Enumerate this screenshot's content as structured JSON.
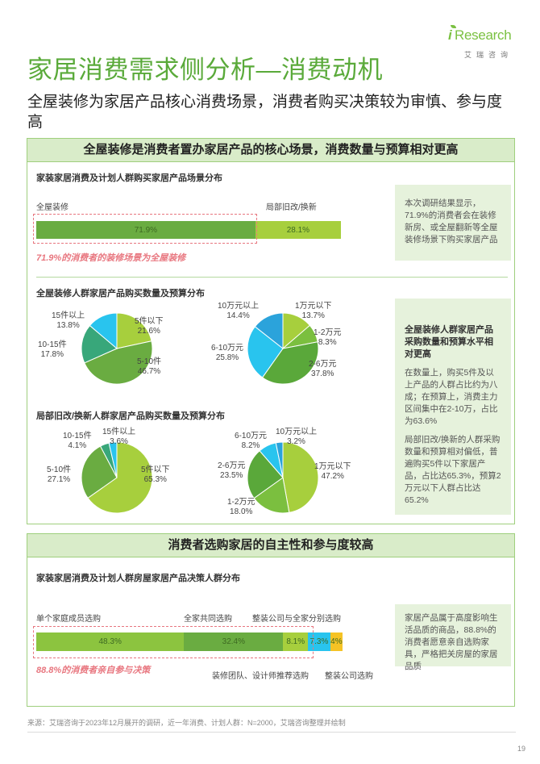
{
  "header": {
    "logo_i": "i",
    "logo_main": "Research",
    "logo_sub": "艾瑞咨询",
    "title": "家居消费需求侧分析—消费动机",
    "subtitle": "全屋装修为家居产品核心消费场景，消费者购买决策较为审慎、参与度高"
  },
  "section1": {
    "heading": "全屋装修是消费者置办家居产品的核心场景，消费数量与预算相对更高",
    "chart1_title": "家装家居消费及计划人群购买家居产品场景分布",
    "chart1_left_label": "全屋装修",
    "chart1_right_label": "局部旧改/换新",
    "chart1_note": "71.9%的消费者的装修场景为全屋装修",
    "side1": "本次调研结果显示，71.9%的消费者会在装修新房、或全屋翻新等全屋装修场景下购买家居产品",
    "chart2_title": "全屋装修人群家居产品购买数量及预算分布",
    "chart3_title": "局部旧改/换新人群家居产品购买数量及预算分布",
    "side2_title": "全屋装修人群家居产品采购数量和预算水平相对更高",
    "side2_p1": "在数量上，购买5件及以上产品的人群占比约为八成；在预算上，消费主力区间集中在2-10万，占比为63.6%",
    "side2_p2": "局部旧改/换新的人群采购数量和预算相对偏低，普遍购买5件以下家居产品，占比达65.3%，预算2万元以下人群占比达65.2%"
  },
  "section2": {
    "heading": "消费者选购家居的自主性和参与度较高",
    "chart_title": "家装家居消费及计划人群房屋家居产品决策人群分布",
    "note": "88.8%的消费者亲自参与决策",
    "side": "家居产品属于高度影响生活品质的商品，88.8%的消费者愿意亲自选购家具，严格把关房屋的家居品质",
    "cat_labels_top": [
      "单个家庭成员选购",
      "全家共同选购",
      "整装公司与全家分别选购"
    ],
    "cat_labels_bottom": [
      "装修团队、设计师推荐选购",
      "整装公司选购"
    ]
  },
  "footer": {
    "source": "来源：艾瑞咨询于2023年12月展开的调研，近一年消费、计划人群：N=2000，艾瑞咨询整理并绘制",
    "page": "19"
  },
  "colors": {
    "accent_green": "#5aaa3a",
    "green_dark": "#6aac41",
    "green_light": "#a7cf3d",
    "blue": "#29a9e0",
    "sky": "#29c4ee",
    "teal": "#38a77a",
    "yellow": "#f5c325",
    "dashed_red": "#e8767f"
  },
  "chart_data": [
    {
      "type": "bar",
      "orientation": "horizontal-stacked",
      "title": "家装家居消费及计划人群购买家居产品场景分布",
      "categories": [
        "全屋装修",
        "局部旧改/换新"
      ],
      "values": [
        71.9,
        28.1
      ],
      "labels": [
        "71.9%",
        "28.1%"
      ],
      "colors": [
        "#6aac41",
        "#a7cf3d"
      ]
    },
    {
      "type": "pie",
      "title": "全屋装修人群家居产品购买数量及预算分布",
      "categories": [
        "5件以下",
        "5-10件",
        "10-15件",
        "15件以上"
      ],
      "values": [
        21.6,
        46.7,
        17.8,
        13.8
      ],
      "colors": [
        "#a7cf3d",
        "#6aac41",
        "#38a77a",
        "#29c4ee"
      ]
    },
    {
      "type": "pie",
      "title": "全屋装修人群家居产品购买数量及预算分布",
      "categories": [
        "1万元以下",
        "1-2万元",
        "2-6万元",
        "6-10万元",
        "10万元以上"
      ],
      "values": [
        13.7,
        8.3,
        37.8,
        25.8,
        14.4
      ],
      "colors": [
        "#a7cf3d",
        "#7bbf3f",
        "#5aa83a",
        "#29c4ee",
        "#2ba3db"
      ]
    },
    {
      "type": "pie",
      "title": "局部旧改/换新人群家居产品购买数量及预算分布",
      "categories": [
        "5件以下",
        "5-10件",
        "10-15件",
        "15件以上"
      ],
      "values": [
        65.3,
        27.1,
        4.1,
        3.6
      ],
      "colors": [
        "#a7cf3d",
        "#6aac41",
        "#38a77a",
        "#29c4ee"
      ]
    },
    {
      "type": "pie",
      "title": "局部旧改/换新人群家居产品购买数量及预算分布",
      "categories": [
        "1万元以下",
        "1-2万元",
        "2-6万元",
        "6-10万元",
        "10万元以上"
      ],
      "values": [
        47.2,
        18.0,
        23.5,
        8.2,
        3.2
      ],
      "colors": [
        "#a7cf3d",
        "#7bbf3f",
        "#5aa83a",
        "#29c4ee",
        "#2ba3db"
      ]
    },
    {
      "type": "bar",
      "orientation": "horizontal-stacked",
      "title": "家装家居消费及计划人群房屋家居产品决策人群分布",
      "categories": [
        "单个家庭成员选购",
        "全家共同选购",
        "整装公司与全家分别选购",
        "装修团队、设计师推荐选购",
        "整装公司选购"
      ],
      "values": [
        48.3,
        32.4,
        8.1,
        7.3,
        4.0
      ],
      "labels": [
        "48.3%",
        "32.4%",
        "8.1%",
        "7.3%",
        "4%"
      ],
      "colors": [
        "#8cc43f",
        "#6aac41",
        "#a7cf3d",
        "#29c4ee",
        "#f5c325"
      ]
    }
  ]
}
